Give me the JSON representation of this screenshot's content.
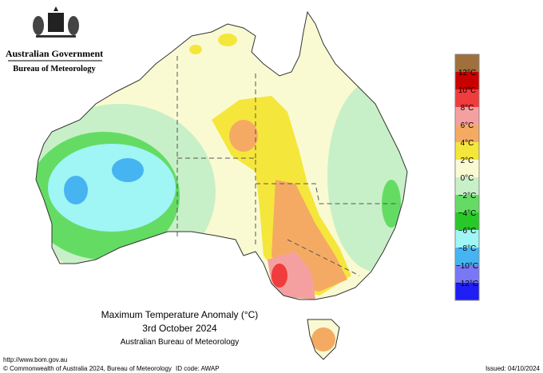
{
  "header": {
    "agency": "Australian Government",
    "bureau": "Bureau of Meteorology"
  },
  "title": {
    "line1": "Maximum Temperature Anomaly (°C)",
    "line2": "3rd October 2024",
    "line3": "Australian Bureau of Meteorology"
  },
  "legend": {
    "colors": [
      "#a0703c",
      "#c80000",
      "#f03c3c",
      "#f5a0a0",
      "#f5aa64",
      "#f5e63c",
      "#fafad2",
      "#c8f0c8",
      "#64dc64",
      "#28c828",
      "#a0f5f5",
      "#46b4f0",
      "#7878f5",
      "#1e1ef5"
    ],
    "labels": [
      "12°C",
      "10°C",
      "8°C",
      "6°C",
      "4°C",
      "2°C",
      "0°C",
      "−2°C",
      "−4°C",
      "−6°C",
      "−8°C",
      "−10°C",
      "−12°C"
    ]
  },
  "footer": {
    "url": "http://www.bom.gov.au",
    "copyright": "© Commonwealth of Australia 2024, Bureau of Meteorology",
    "id_code": "ID code: AWAP",
    "issued": "Issued: 04/10/2024"
  }
}
